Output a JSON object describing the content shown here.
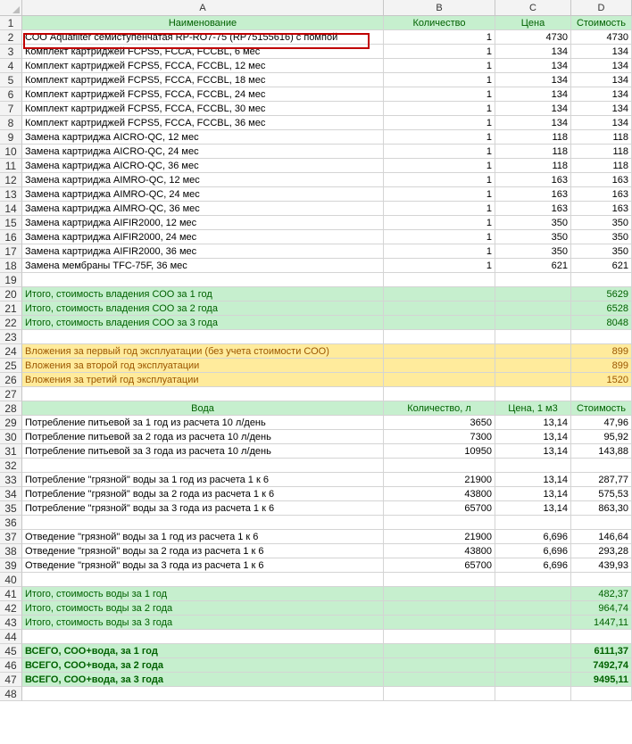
{
  "columns": [
    "A",
    "B",
    "C",
    "D"
  ],
  "rows": [
    {
      "n": "1",
      "style": "hdrrow",
      "a": "Наименование",
      "b": "Количество",
      "c": "Цена",
      "d": "Стоимость",
      "align": "center"
    },
    {
      "n": "2",
      "a": "СОО Aquafilter семиступенчатая RP-RO7-75 (RP75155616) с помпой",
      "b": "1",
      "c": "4730",
      "d": "4730"
    },
    {
      "n": "3",
      "a": "Комплект картриджей FCPS5, FCCA, FCCBL, 6 мес",
      "b": "1",
      "c": "134",
      "d": "134"
    },
    {
      "n": "4",
      "a": "Комплект картриджей FCPS5, FCCA, FCCBL, 12 мес",
      "b": "1",
      "c": "134",
      "d": "134"
    },
    {
      "n": "5",
      "a": "Комплект картриджей FCPS5, FCCA, FCCBL, 18 мес",
      "b": "1",
      "c": "134",
      "d": "134"
    },
    {
      "n": "6",
      "a": "Комплект картриджей FCPS5, FCCA, FCCBL, 24 мес",
      "b": "1",
      "c": "134",
      "d": "134"
    },
    {
      "n": "7",
      "a": "Комплект картриджей FCPS5, FCCA, FCCBL, 30 мес",
      "b": "1",
      "c": "134",
      "d": "134"
    },
    {
      "n": "8",
      "a": "Комплект картриджей FCPS5, FCCA, FCCBL, 36 мес",
      "b": "1",
      "c": "134",
      "d": "134"
    },
    {
      "n": "9",
      "a": "Замена картриджа AICRO-QC, 12 мес",
      "b": "1",
      "c": "118",
      "d": "118"
    },
    {
      "n": "10",
      "a": "Замена картриджа AICRO-QC, 24 мес",
      "b": "1",
      "c": "118",
      "d": "118"
    },
    {
      "n": "11",
      "a": "Замена картриджа AICRO-QC, 36 мес",
      "b": "1",
      "c": "118",
      "d": "118"
    },
    {
      "n": "12",
      "a": "Замена картриджа AIMRO-QC, 12 мес",
      "b": "1",
      "c": "163",
      "d": "163"
    },
    {
      "n": "13",
      "a": "Замена картриджа AIMRO-QC, 24 мес",
      "b": "1",
      "c": "163",
      "d": "163"
    },
    {
      "n": "14",
      "a": "Замена картриджа AIMRO-QC, 36 мес",
      "b": "1",
      "c": "163",
      "d": "163"
    },
    {
      "n": "15",
      "a": "Замена картриджа AIFIR2000, 12 мес",
      "b": "1",
      "c": "350",
      "d": "350"
    },
    {
      "n": "16",
      "a": "Замена картриджа AIFIR2000, 24 мес",
      "b": "1",
      "c": "350",
      "d": "350"
    },
    {
      "n": "17",
      "a": "Замена картриджа AIFIR2000, 36 мес",
      "b": "1",
      "c": "350",
      "d": "350"
    },
    {
      "n": "18",
      "a": "Замена мембраны TFC-75F, 36 мес",
      "b": "1",
      "c": "621",
      "d": "621"
    },
    {
      "n": "19",
      "a": "",
      "b": "",
      "c": "",
      "d": ""
    },
    {
      "n": "20",
      "style": "green",
      "a": "Итого, стоимость владения СОО за 1 год",
      "b": "",
      "c": "",
      "d": "5629"
    },
    {
      "n": "21",
      "style": "green",
      "a": "Итого, стоимость владения СОО за 2 года",
      "b": "",
      "c": "",
      "d": "6528"
    },
    {
      "n": "22",
      "style": "green",
      "a": "Итого, стоимость владения СОО за 3 года",
      "b": "",
      "c": "",
      "d": "8048"
    },
    {
      "n": "23",
      "a": "",
      "b": "",
      "c": "",
      "d": ""
    },
    {
      "n": "24",
      "style": "yellow",
      "a": "Вложения за первый год эксплуатации (без учета стоимости СОО)",
      "b": "",
      "c": "",
      "d": "899"
    },
    {
      "n": "25",
      "style": "yellow",
      "a": "Вложения за второй год эксплуатации",
      "b": "",
      "c": "",
      "d": "899"
    },
    {
      "n": "26",
      "style": "yellow",
      "a": "Вложения за третий год эксплуатации",
      "b": "",
      "c": "",
      "d": "1520"
    },
    {
      "n": "27",
      "a": "",
      "b": "",
      "c": "",
      "d": ""
    },
    {
      "n": "28",
      "style": "hdrrow",
      "a": "Вода",
      "b": "Количество, л",
      "c": "Цена, 1 м3",
      "d": "Стоимость",
      "align": "center"
    },
    {
      "n": "29",
      "a": "Потребление питьевой за 1 год из расчета 10 л/день",
      "b": "3650",
      "c": "13,14",
      "d": "47,96"
    },
    {
      "n": "30",
      "a": "Потребление питьевой за 2 года из расчета 10 л/день",
      "b": "7300",
      "c": "13,14",
      "d": "95,92"
    },
    {
      "n": "31",
      "a": "Потребление питьевой за 3 года из расчета 10 л/день",
      "b": "10950",
      "c": "13,14",
      "d": "143,88"
    },
    {
      "n": "32",
      "a": "",
      "b": "",
      "c": "",
      "d": ""
    },
    {
      "n": "33",
      "a": "Потребление \"грязной\" воды за 1 год из расчета 1 к 6",
      "b": "21900",
      "c": "13,14",
      "d": "287,77"
    },
    {
      "n": "34",
      "a": "Потребление \"грязной\" воды за 2 года из расчета 1 к 6",
      "b": "43800",
      "c": "13,14",
      "d": "575,53"
    },
    {
      "n": "35",
      "a": "Потребление \"грязной\" воды за 3 года из расчета 1 к 6",
      "b": "65700",
      "c": "13,14",
      "d": "863,30"
    },
    {
      "n": "36",
      "a": "",
      "b": "",
      "c": "",
      "d": ""
    },
    {
      "n": "37",
      "a": "Отведение \"грязной\" воды за 1 год из расчета 1 к 6",
      "b": "21900",
      "c": "6,696",
      "d": "146,64"
    },
    {
      "n": "38",
      "a": "Отведение \"грязной\" воды за 2 года из расчета 1 к 6",
      "b": "43800",
      "c": "6,696",
      "d": "293,28"
    },
    {
      "n": "39",
      "a": "Отведение \"грязной\" воды за 3 года из расчета 1 к 6",
      "b": "65700",
      "c": "6,696",
      "d": "439,93"
    },
    {
      "n": "40",
      "a": "",
      "b": "",
      "c": "",
      "d": ""
    },
    {
      "n": "41",
      "style": "green",
      "a": "Итого, стоимость воды за 1 год",
      "b": "",
      "c": "",
      "d": "482,37"
    },
    {
      "n": "42",
      "style": "green",
      "a": "Итого, стоимость воды за 2 года",
      "b": "",
      "c": "",
      "d": "964,74"
    },
    {
      "n": "43",
      "style": "green",
      "a": "Итого, стоимость воды за 3 года",
      "b": "",
      "c": "",
      "d": "1447,11"
    },
    {
      "n": "44",
      "a": "",
      "b": "",
      "c": "",
      "d": ""
    },
    {
      "n": "45",
      "style": "green-b",
      "a": "ВСЕГО, СОО+вода, за 1 год",
      "b": "",
      "c": "",
      "d": "6111,37"
    },
    {
      "n": "46",
      "style": "green-b",
      "a": "ВСЕГО, СОО+вода, за 2 года",
      "b": "",
      "c": "",
      "d": "7492,74"
    },
    {
      "n": "47",
      "style": "green-b",
      "a": "ВСЕГО, СОО+вода, за 3 года",
      "b": "",
      "c": "",
      "d": "9495,11"
    },
    {
      "n": "48",
      "a": "",
      "b": "",
      "c": "",
      "d": ""
    }
  ],
  "colors": {
    "green_fill": "#c6efce",
    "green_text": "#006100",
    "yellow_fill": "#ffeb9c",
    "yellow_text": "#9c5700",
    "selection": "#c00000"
  }
}
